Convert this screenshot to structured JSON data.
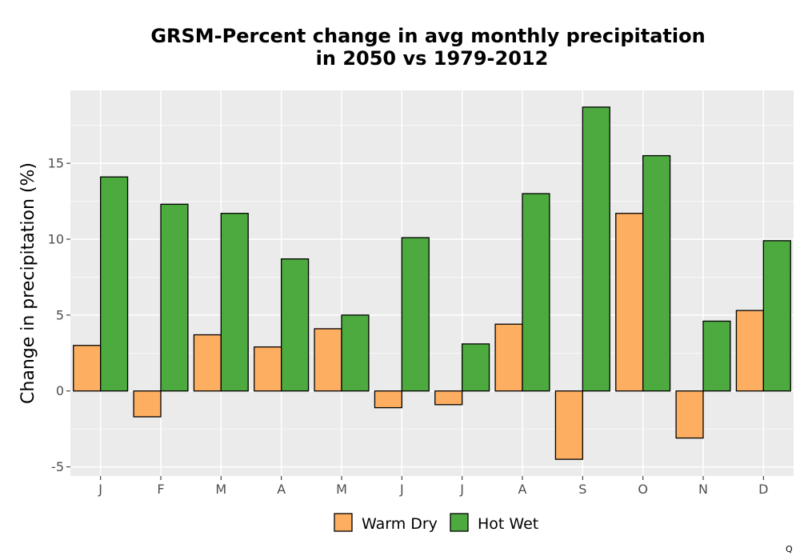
{
  "chart_data": {
    "type": "bar",
    "title_lines": [
      "GRSM-Percent change in avg monthly precipitation",
      "in 2050 vs 1979-2012"
    ],
    "xlabel": "",
    "ylabel": "Change in precipitation (%)",
    "categories": [
      "J",
      "F",
      "M",
      "A",
      "M",
      "J",
      "J",
      "A",
      "S",
      "O",
      "N",
      "D"
    ],
    "series": [
      {
        "name": "Warm Dry",
        "color": "#fdae61",
        "values": [
          3.0,
          -1.7,
          3.7,
          2.9,
          4.1,
          -1.1,
          -0.9,
          4.4,
          -4.5,
          11.7,
          -3.1,
          5.3
        ]
      },
      {
        "name": "Hot Wet",
        "color": "#4daa3f",
        "values": [
          14.1,
          12.3,
          11.7,
          8.7,
          5.0,
          10.1,
          3.1,
          13.0,
          18.7,
          15.5,
          4.6,
          9.9
        ]
      }
    ],
    "ylim": [
      -5.6,
      19.8
    ],
    "yticks": [
      -5,
      0,
      5,
      10,
      15
    ],
    "grid": true,
    "legend_position": "bottom",
    "panel_color": "#ebebeb",
    "corner_mark": "Q"
  }
}
